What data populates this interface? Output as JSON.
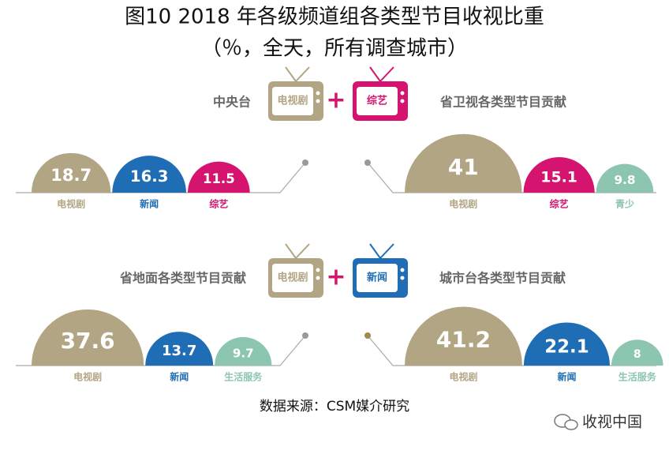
{
  "title": "图10 2018 年各级频道组各类型节目收视比重",
  "subtitle": "（％，全天，所有调查城市）",
  "tv_pairs": [
    {
      "left": "电视剧",
      "right": "综艺"
    },
    {
      "left": "电视剧",
      "right": "新闻"
    }
  ],
  "source": "数据来源：CSM媒介研究",
  "watermark": "收视中国",
  "chart_data": [
    {
      "type": "semicircle",
      "title": "中央台",
      "categories": [
        "电视剧",
        "新闻",
        "综艺"
      ],
      "values": [
        18.7,
        16.3,
        11.5
      ],
      "colors": [
        "#b2a583",
        "#1f6db5",
        "#d4146e"
      ]
    },
    {
      "type": "semicircle",
      "title": "省卫视各类型节目贡献",
      "categories": [
        "电视剧",
        "综艺",
        "青少"
      ],
      "values": [
        41,
        15.1,
        9.8
      ],
      "colors": [
        "#b2a583",
        "#d4146e",
        "#8cc5b0"
      ]
    },
    {
      "type": "semicircle",
      "title": "省地面各类型节目贡献",
      "categories": [
        "电视剧",
        "新闻",
        "生活服务"
      ],
      "values": [
        37.6,
        13.7,
        9.7
      ],
      "colors": [
        "#b2a583",
        "#1f6db5",
        "#8cc5b0"
      ]
    },
    {
      "type": "semicircle",
      "title": "城市台各类型节目贡献",
      "categories": [
        "电视剧",
        "新闻",
        "生活服务"
      ],
      "values": [
        41.2,
        22.1,
        8
      ],
      "colors": [
        "#b2a583",
        "#1f6db5",
        "#8cc5b0"
      ]
    }
  ]
}
